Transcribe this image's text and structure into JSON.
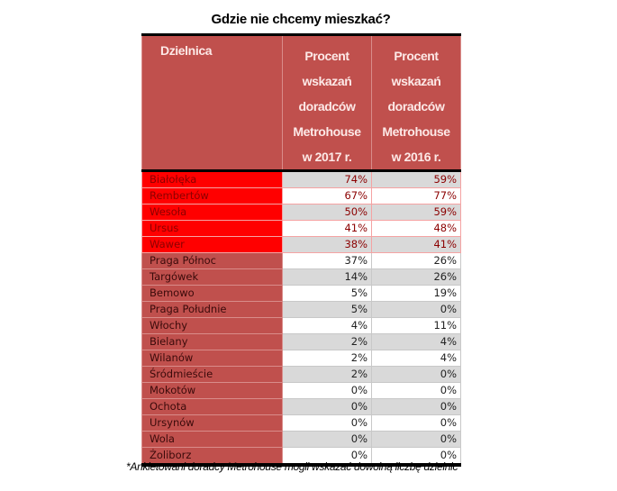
{
  "title": "Gdzie nie chcemy mieszkać?",
  "table": {
    "headers": {
      "district": "Dzielnica",
      "col2017": [
        "Procent",
        "wskazań",
        "doradców",
        "Metrohouse",
        "w 2017 r."
      ],
      "col2016": [
        "Procent",
        "wskazań",
        "doradców",
        "Metrohouse",
        "w 2016 r."
      ]
    },
    "rows": [
      {
        "name": "Białołęka",
        "y2017": "74%",
        "y2016": "59%",
        "highlight": true
      },
      {
        "name": "Rembertów",
        "y2017": "67%",
        "y2016": "77%",
        "highlight": true
      },
      {
        "name": "Wesoła",
        "y2017": "50%",
        "y2016": "59%",
        "highlight": true
      },
      {
        "name": "Ursus",
        "y2017": "41%",
        "y2016": "48%",
        "highlight": true
      },
      {
        "name": "Wawer",
        "y2017": "38%",
        "y2016": "41%",
        "highlight": true
      },
      {
        "name": "Praga Północ",
        "y2017": "37%",
        "y2016": "26%",
        "highlight": false
      },
      {
        "name": "Targówek",
        "y2017": "14%",
        "y2016": "26%",
        "highlight": false
      },
      {
        "name": "Bemowo",
        "y2017": "5%",
        "y2016": "19%",
        "highlight": false
      },
      {
        "name": "Praga Południe",
        "y2017": "5%",
        "y2016": "0%",
        "highlight": false
      },
      {
        "name": "Włochy",
        "y2017": "4%",
        "y2016": "11%",
        "highlight": false
      },
      {
        "name": "Bielany",
        "y2017": "2%",
        "y2016": "4%",
        "highlight": false
      },
      {
        "name": "Wilanów",
        "y2017": "2%",
        "y2016": "4%",
        "highlight": false
      },
      {
        "name": "Śródmieście",
        "y2017": "2%",
        "y2016": "0%",
        "highlight": false
      },
      {
        "name": "Mokotów",
        "y2017": "0%",
        "y2016": "0%",
        "highlight": false
      },
      {
        "name": "Ochota",
        "y2017": "0%",
        "y2016": "0%",
        "highlight": false
      },
      {
        "name": "Ursynów",
        "y2017": "0%",
        "y2016": "0%",
        "highlight": false
      },
      {
        "name": "Wola",
        "y2017": "0%",
        "y2016": "0%",
        "highlight": false
      },
      {
        "name": "Żoliborz",
        "y2017": "0%",
        "y2016": "0%",
        "highlight": false
      }
    ]
  },
  "footnote": "*Ankietowani doradcy Metrohouse mogli wskazać dowolną liczbę dzielnic",
  "colors": {
    "header_bg": "#c0504d",
    "highlight_bg": "#ff0000",
    "name_col_bg": "#c0504d",
    "alt_row_bg": "#d9d9d9"
  }
}
